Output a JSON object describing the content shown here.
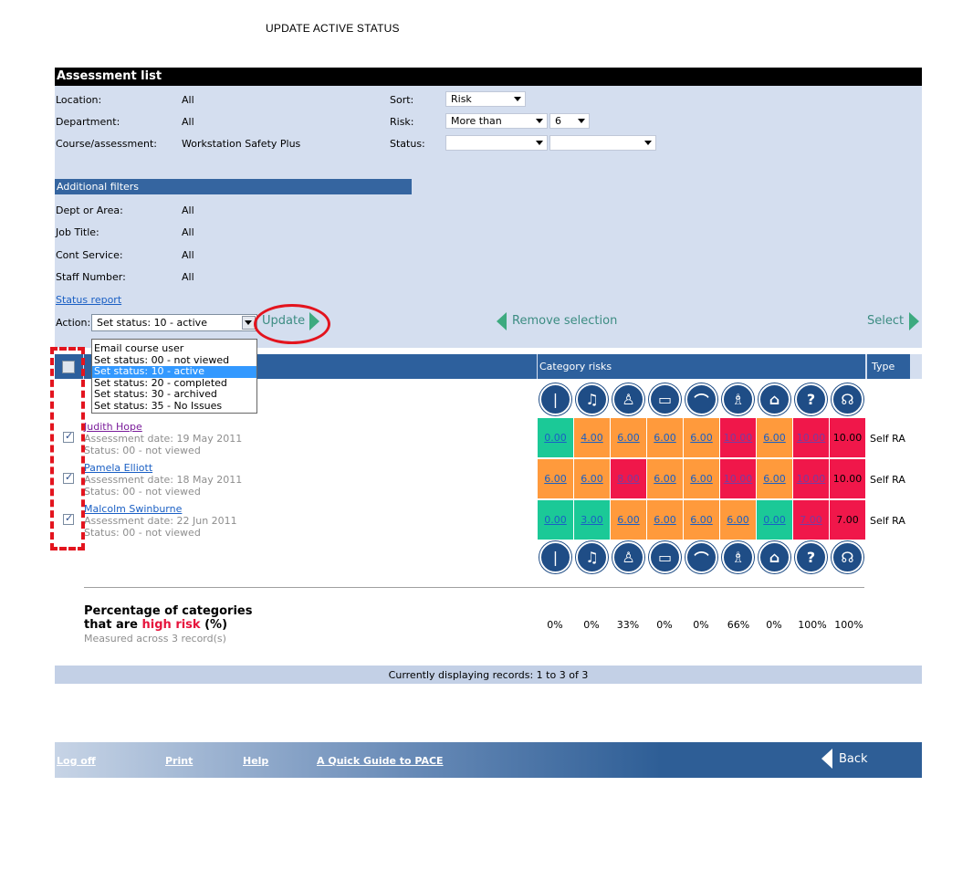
{
  "page_title": "UPDATE ACTIVE STATUS",
  "panel": {
    "title": "Assessment list",
    "filters": [
      {
        "label": "Location:",
        "value": "All"
      },
      {
        "label": "Department:",
        "value": "All"
      },
      {
        "label": "Course/assessment:",
        "value": "Workstation Safety Plus"
      }
    ],
    "sort": {
      "label": "Sort:",
      "value": "Risk"
    },
    "risk": {
      "label": "Risk:",
      "operator": "More than",
      "value": "6"
    },
    "status": {
      "label": "Status:",
      "value1": "",
      "value2": ""
    },
    "additional_filters_title": "Additional filters",
    "additional_filters": [
      {
        "label": "Dept or Area:",
        "value": "All"
      },
      {
        "label": "Job Title:",
        "value": "All"
      },
      {
        "label": "Cont Service:",
        "value": "All"
      },
      {
        "label": "Staff Number:",
        "value": "All"
      }
    ],
    "status_report_link": "Status report",
    "action_label": "Action:",
    "action_value": "Set status: 10 - active",
    "update_label": "Update",
    "remove_selection_label": "Remove selection",
    "select_label": "Select",
    "dropdown_options": [
      "Email course user",
      "Set status: 00 - not viewed",
      "Set status: 10 - active",
      "Set status: 20 - completed",
      "Set status: 30 - archived",
      "Set status: 35 - No Issues"
    ],
    "category_risks_label": "Category risks",
    "type_label": "Type",
    "category_icons": [
      "spine-icon",
      "music-icon",
      "chair-icon",
      "monitor-icon",
      "mouse-icon",
      "desk-icon",
      "laptop-icon",
      "question-icon",
      "headset-icon"
    ],
    "rows": [
      {
        "name": "Judith Hope",
        "assessment_date": "Assessment date: 19 May 2011",
        "status": "Status: 00 - not viewed",
        "scores": [
          "0.00",
          "4.00",
          "6.00",
          "6.00",
          "6.00",
          "10.00",
          "6.00",
          "10.00",
          "10.00"
        ],
        "type": "Self RA"
      },
      {
        "name": "Pamela Elliott",
        "assessment_date": "Assessment date: 18 May 2011",
        "status": "Status: 00 - not viewed",
        "scores": [
          "6.00",
          "6.00",
          "8.00",
          "6.00",
          "6.00",
          "10.00",
          "6.00",
          "10.00",
          "10.00"
        ],
        "type": "Self RA"
      },
      {
        "name": "Malcolm Swinburne",
        "assessment_date": "Assessment date: 22 Jun 2011",
        "status": "Status: 00 - not viewed",
        "scores": [
          "0.00",
          "3.00",
          "6.00",
          "6.00",
          "6.00",
          "6.00",
          "0.00",
          "7.00",
          "7.00"
        ],
        "type": "Self RA"
      }
    ],
    "percentage_title_line1": "Percentage of categories",
    "percentage_title_line2_a": "that are ",
    "percentage_title_high": "high risk",
    "percentage_title_line2_b": " (%)",
    "percentage_sub": "Measured across 3 record(s)",
    "percentages": [
      "0%",
      "0%",
      "33%",
      "0%",
      "0%",
      "66%",
      "0%",
      "100%",
      "100%"
    ],
    "footer_status": "Currently displaying records: 1 to 3 of 3"
  },
  "bottom_nav": {
    "log_off": "Log off",
    "print": "Print",
    "help": "Help",
    "quick_guide": "A Quick Guide to PACE",
    "back": "Back"
  },
  "colors": {
    "green": "#1bc997",
    "orange": "#ff9a3c",
    "red": "#f0174a",
    "header_blue": "#2d609d",
    "panel_bg": "#d4deef"
  }
}
